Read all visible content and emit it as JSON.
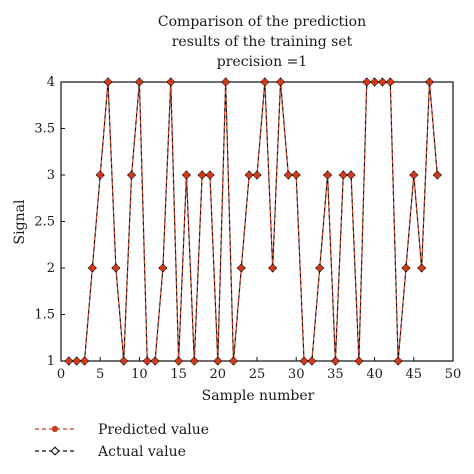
{
  "colors": {
    "predicted": "#cc3a1c",
    "actual": "#111111",
    "axis": "#111111",
    "marker_fill_actual": "#ffffff"
  },
  "chart_data": {
    "type": "line",
    "title_lines": [
      "Comparison of the prediction",
      "results of the training set",
      "precision =1"
    ],
    "xlabel": "Sample number",
    "ylabel": "Signal",
    "xlim": [
      0,
      50
    ],
    "ylim": [
      1,
      4
    ],
    "xticks": [
      0,
      5,
      10,
      15,
      20,
      25,
      30,
      35,
      40,
      45,
      50
    ],
    "yticks": [
      1,
      1.5,
      2,
      2.5,
      3,
      3.5,
      4
    ],
    "ytick_labels": [
      "1",
      "1.5",
      "2",
      "2.5",
      "3",
      "3.5",
      "4"
    ],
    "grid": false,
    "legend_position": "bottom-left",
    "x": [
      1,
      2,
      3,
      4,
      5,
      6,
      7,
      8,
      9,
      10,
      11,
      12,
      13,
      14,
      15,
      16,
      17,
      18,
      19,
      20,
      21,
      22,
      23,
      24,
      25,
      26,
      27,
      28,
      29,
      30,
      31,
      32,
      33,
      34,
      35,
      36,
      37,
      38,
      39,
      40,
      41,
      42,
      43,
      44,
      45,
      46,
      47,
      48
    ],
    "series": [
      {
        "name": "Predicted value",
        "marker": "filled-circle",
        "values": [
          1,
          1,
          1,
          2,
          3,
          4,
          2,
          1,
          3,
          4,
          1,
          1,
          2,
          4,
          1,
          3,
          1,
          3,
          3,
          1,
          4,
          1,
          2,
          3,
          3,
          4,
          2,
          4,
          3,
          3,
          1,
          1,
          2,
          3,
          1,
          3,
          3,
          1,
          4,
          4,
          4,
          4,
          1,
          2,
          3,
          2,
          4,
          3
        ]
      },
      {
        "name": "Actual value",
        "marker": "open-diamond",
        "values": [
          1,
          1,
          1,
          2,
          3,
          4,
          2,
          1,
          3,
          4,
          1,
          1,
          2,
          4,
          1,
          3,
          1,
          3,
          3,
          1,
          4,
          1,
          2,
          3,
          3,
          4,
          2,
          4,
          3,
          3,
          1,
          1,
          2,
          3,
          1,
          3,
          3,
          1,
          4,
          4,
          4,
          4,
          1,
          2,
          3,
          2,
          4,
          3
        ]
      }
    ]
  }
}
